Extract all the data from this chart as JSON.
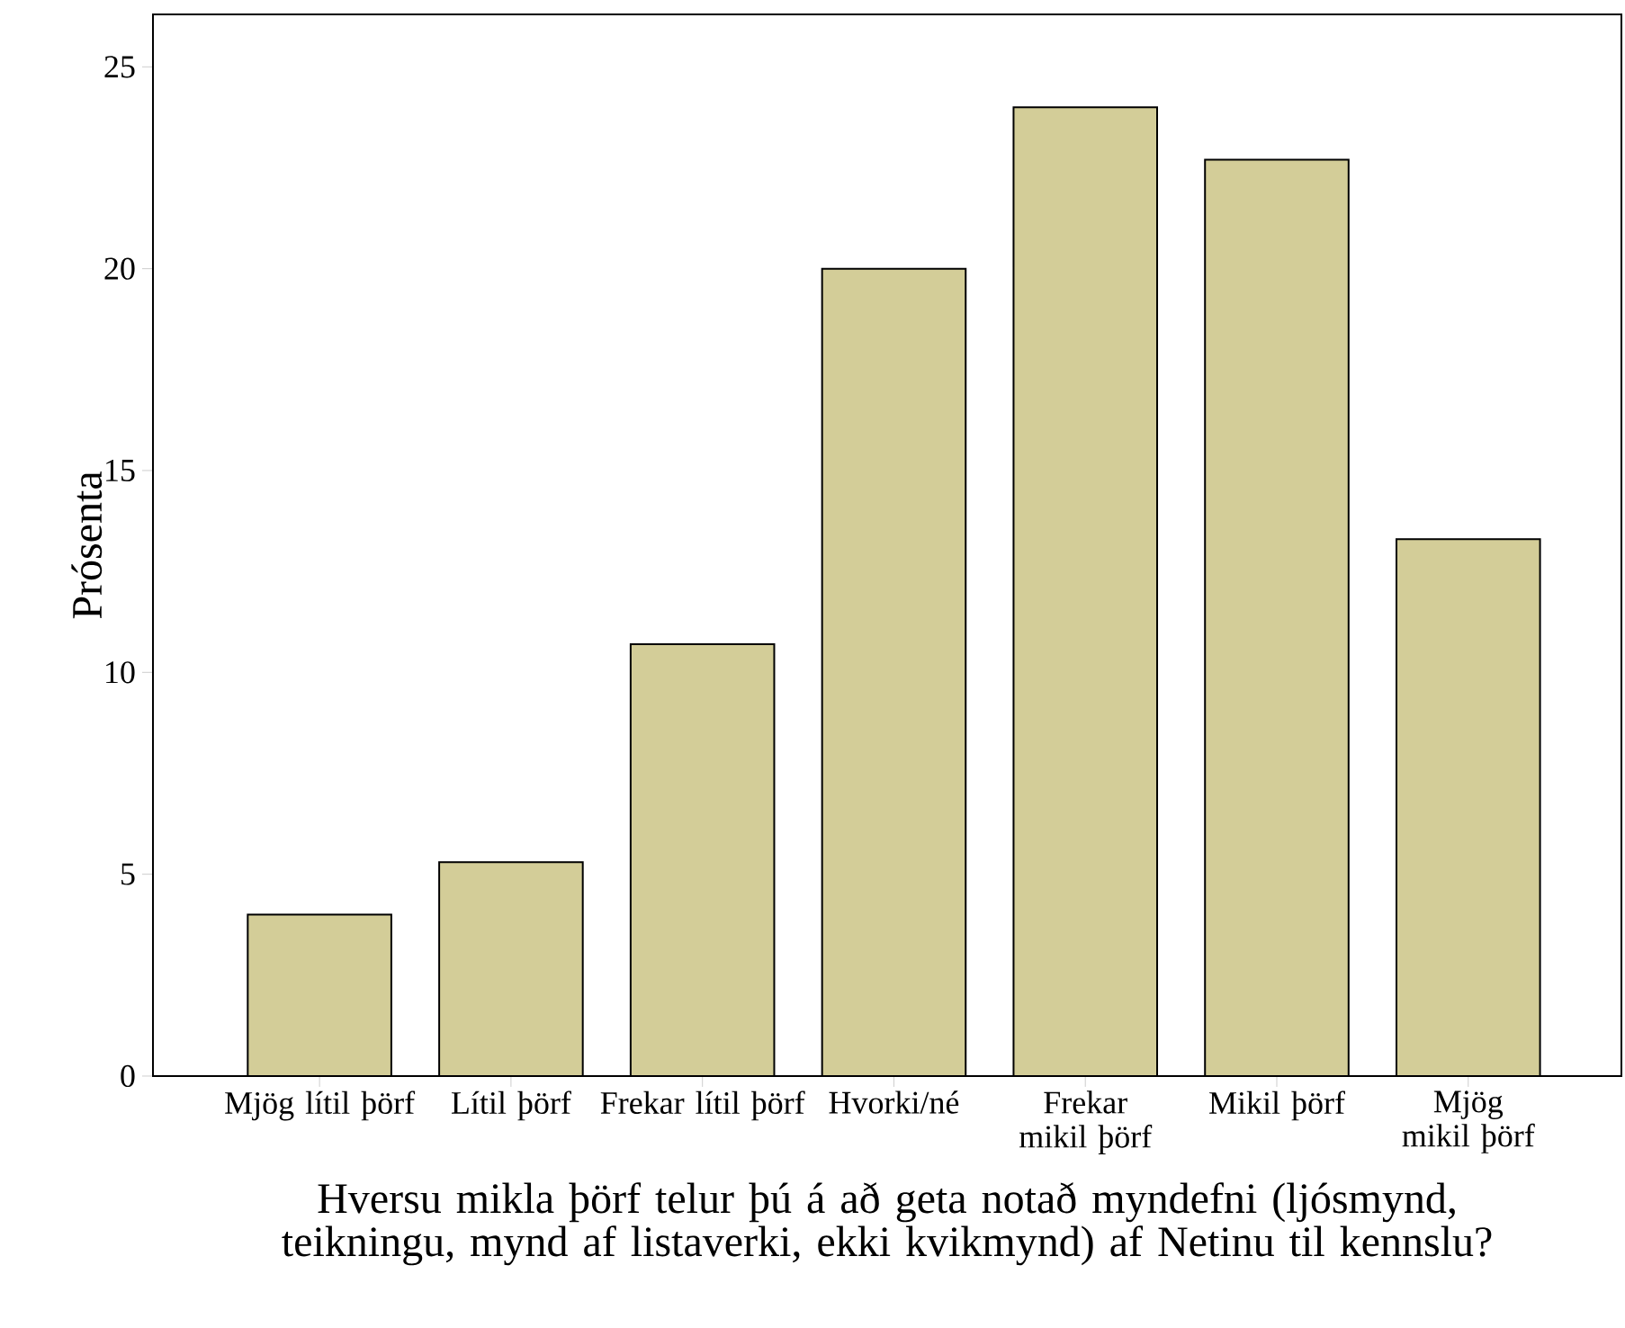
{
  "chart_data": {
    "type": "bar",
    "ylabel": "Prósenta",
    "xlabel": "Hversu mikla þörf telur þú á að geta notað myndefni (ljósmynd, teikningu, mynd af listaverki, ekki kvikmynd) af Netinu til kennslu?",
    "categories": [
      "Mjög lítil þörf",
      "Lítil þörf",
      "Frekar lítil þörf",
      "Hvorki/né",
      "Frekar mikil þörf",
      "Mikil þörf",
      "Mjög mikil þörf"
    ],
    "values": [
      4.0,
      5.3,
      10.7,
      20.0,
      24.0,
      22.7,
      13.3
    ],
    "color": "#d3cd98",
    "ylim": [
      0,
      26.3
    ],
    "yticks": [
      0,
      5,
      10,
      15,
      20,
      25
    ]
  }
}
